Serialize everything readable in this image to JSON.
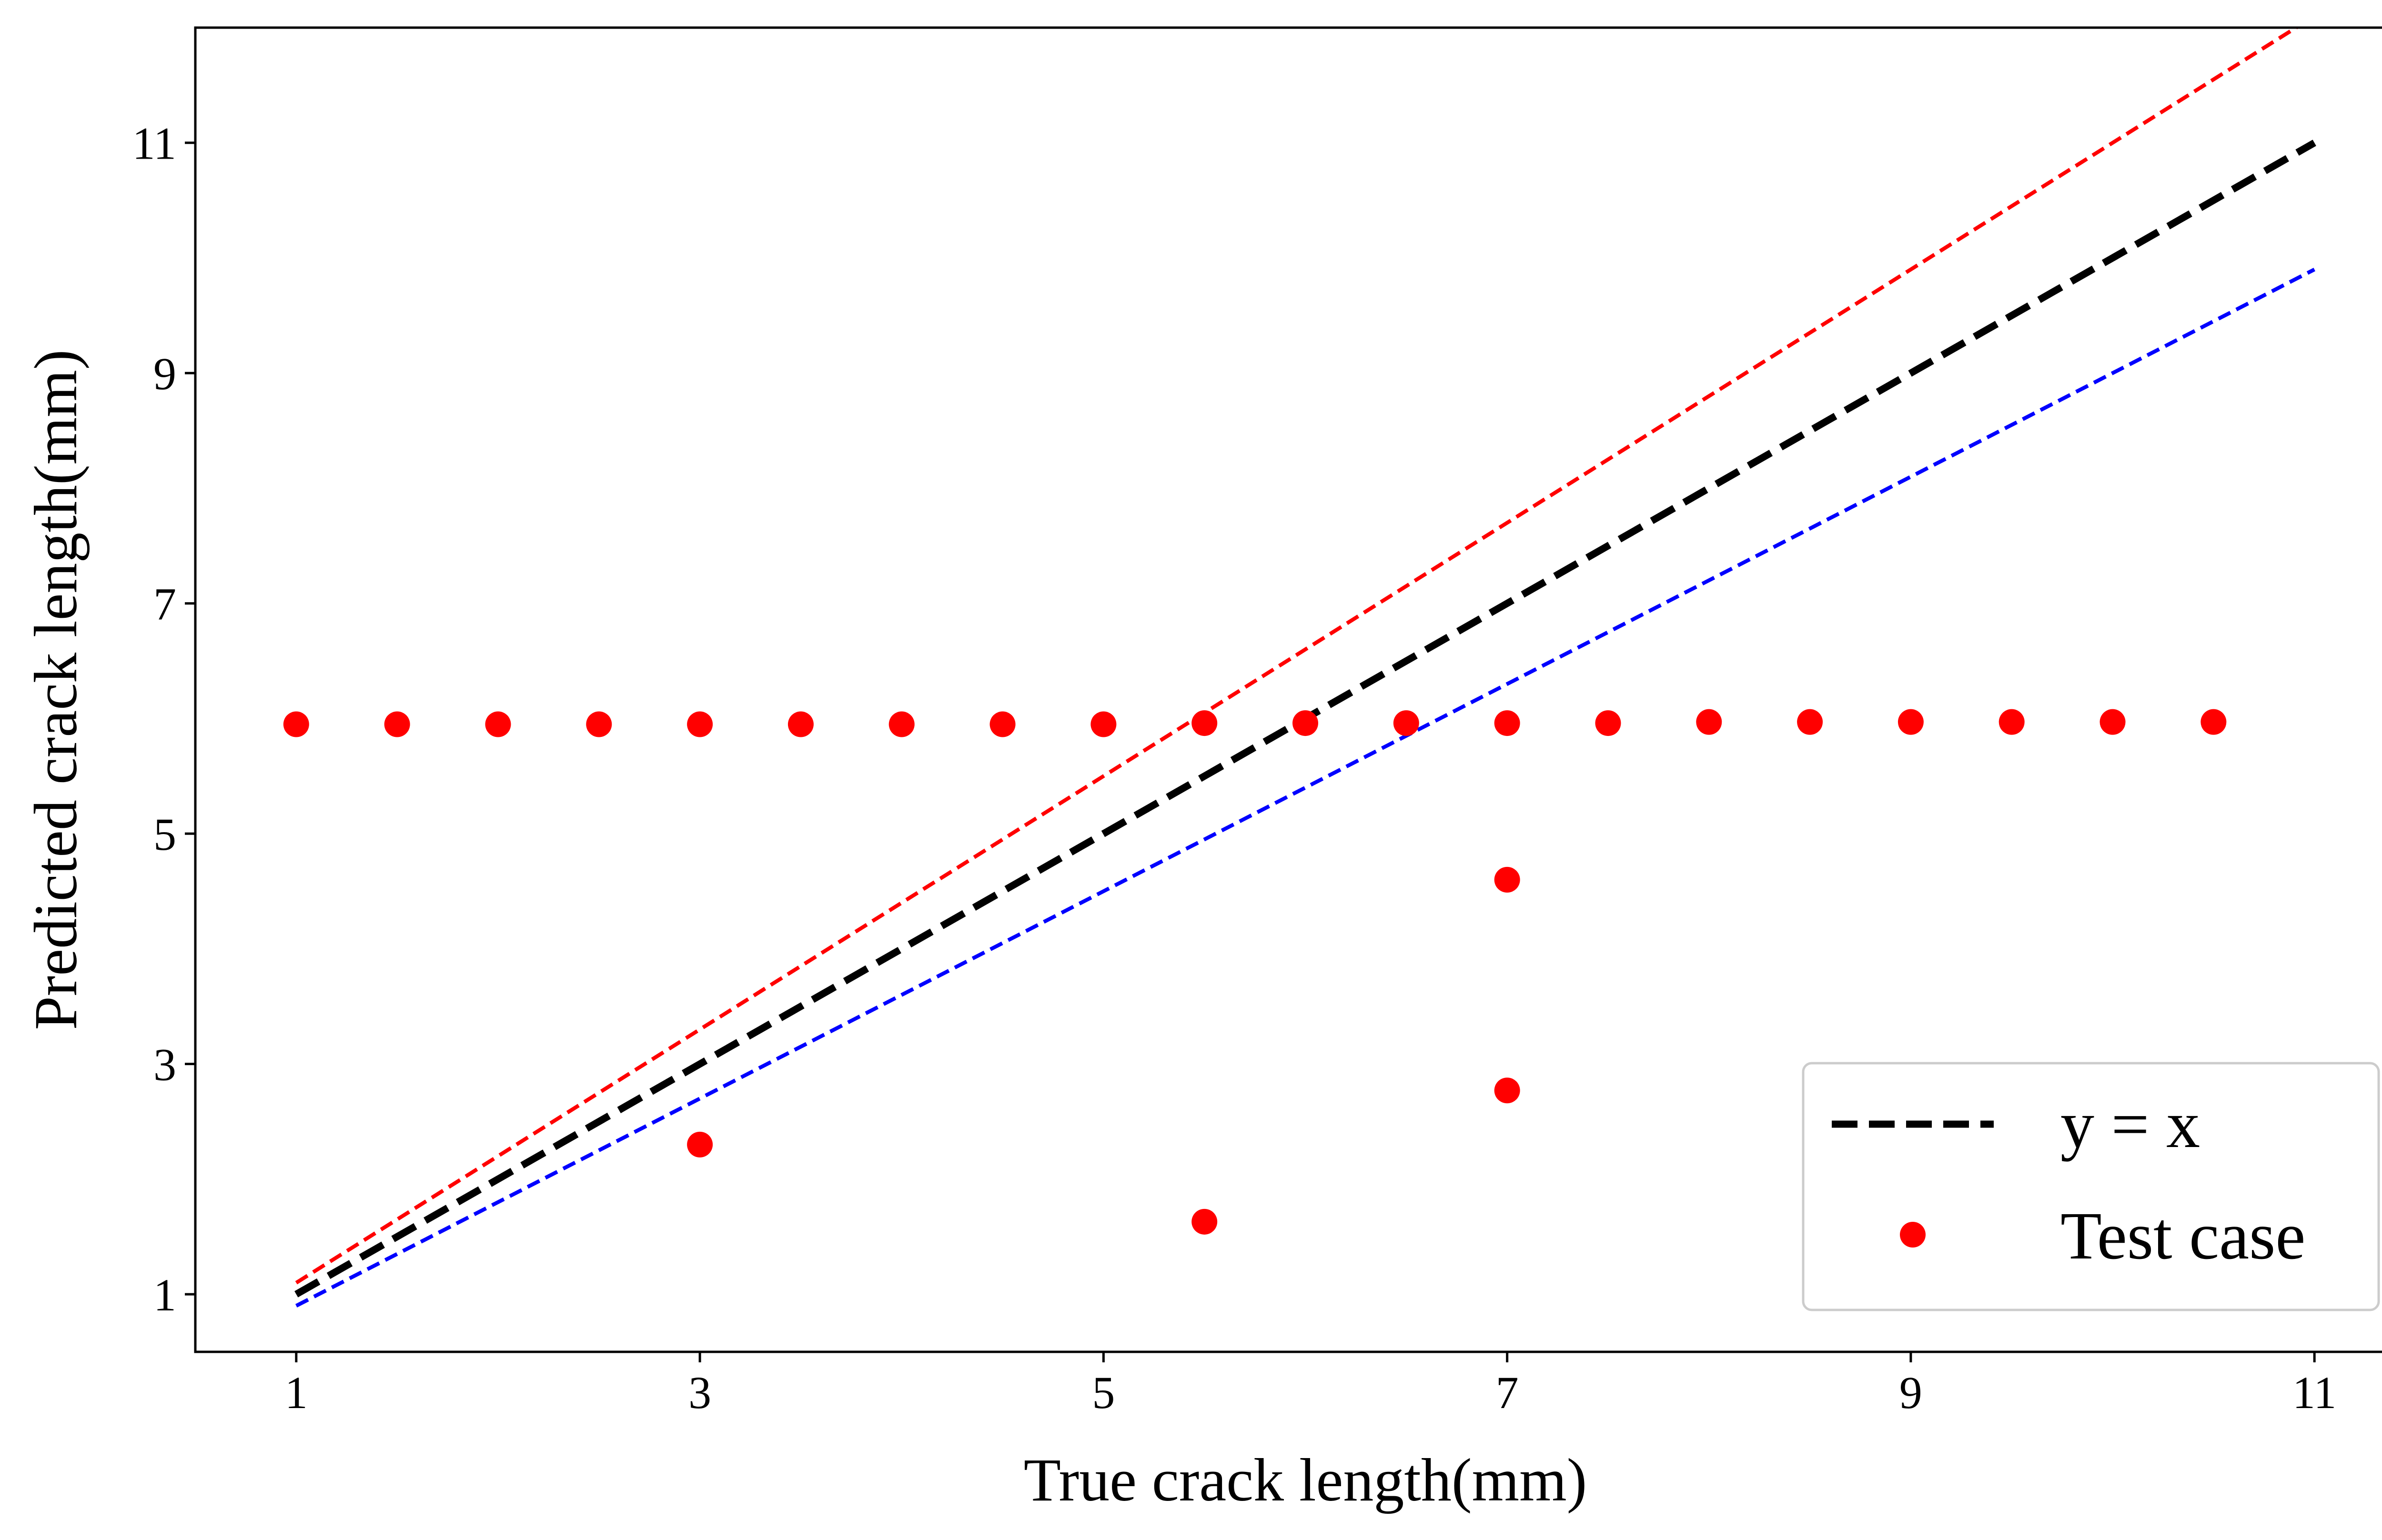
{
  "chart_data": {
    "type": "scatter",
    "title": "",
    "xlabel": "True crack length(mm)",
    "ylabel": "Predicted crack length(mm)",
    "xlim": [
      0.5,
      11.5
    ],
    "ylim": [
      0.5,
      12.0
    ],
    "xticks": [
      1,
      3,
      5,
      7,
      9,
      11
    ],
    "yticks": [
      1,
      3,
      5,
      7,
      9,
      11
    ],
    "grid": false,
    "legend_position": "bottom-right",
    "series": [
      {
        "name": "y = x",
        "kind": "line",
        "style": "dashed",
        "color": "#000000",
        "x": [
          1,
          11
        ],
        "y": [
          1,
          11
        ]
      },
      {
        "kind": "line",
        "style": "dashed",
        "color": "#ff0000",
        "x": [
          1,
          11
        ],
        "y": [
          1.1,
          12.1
        ]
      },
      {
        "kind": "line",
        "style": "dashed",
        "color": "#0000ff",
        "x": [
          1,
          11
        ],
        "y": [
          0.9,
          9.9
        ]
      },
      {
        "name": "Test case",
        "kind": "scatter",
        "color": "#ff0000",
        "x": [
          1,
          1.5,
          2,
          2.5,
          3,
          3.5,
          4,
          4.5,
          5,
          5.5,
          6,
          6.5,
          7,
          7.5,
          8,
          8.5,
          9,
          9.5,
          10,
          10.5,
          3,
          5.5,
          7,
          7
        ],
        "y": [
          5.95,
          5.95,
          5.95,
          5.95,
          5.95,
          5.95,
          5.95,
          5.95,
          5.95,
          5.96,
          5.96,
          5.96,
          5.96,
          5.96,
          5.97,
          5.97,
          5.97,
          5.97,
          5.97,
          5.97,
          2.3,
          1.63,
          2.77,
          4.6
        ]
      }
    ]
  }
}
